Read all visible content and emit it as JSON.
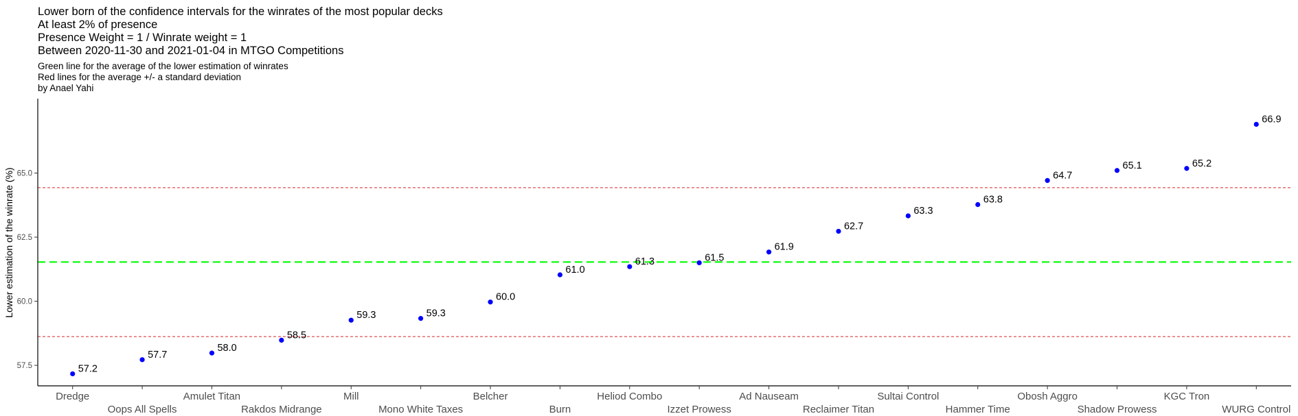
{
  "titles": [
    "Lower born of the confidence intervals for the winrates of the most popular decks",
    "At least 2% of presence",
    "Presence Weight = 1 / Winrate weight = 1",
    "Between 2020-11-30 and 2021-01-04 in MTGO Competitions"
  ],
  "subtitles": [
    "Green line for the average of the lower estimation of winrates",
    "Red lines for the average +/- a standard deviation",
    "by Anael Yahi"
  ],
  "chart_data": {
    "type": "scatter",
    "ylabel": "Lower estimation of the winrate (%)",
    "xlabel": "",
    "ylim": [
      56.7,
      67.9
    ],
    "yticks": [
      "57.5",
      "60.0",
      "62.5",
      "65.0"
    ],
    "ytick_values": [
      57.5,
      60.0,
      62.5,
      65.0
    ],
    "grid": false,
    "categories": [
      "Dredge",
      "Oops All Spells",
      "Amulet Titan",
      "Rakdos Midrange",
      "Mill",
      "Mono White Taxes",
      "Belcher",
      "Burn",
      "Heliod Combo",
      "Izzet Prowess",
      "Ad Nauseam",
      "Reclaimer Titan",
      "Sultai Control",
      "Hammer Time",
      "Obosh Aggro",
      "Shadow Prowess",
      "KGC Tron",
      "WURG Control"
    ],
    "values": [
      57.17,
      57.72,
      57.98,
      58.48,
      59.26,
      59.33,
      59.97,
      61.03,
      61.35,
      61.5,
      61.92,
      62.73,
      63.33,
      63.77,
      64.71,
      65.1,
      65.18,
      66.9
    ],
    "value_labels": [
      "57.2",
      "57.7",
      "58.0",
      "58.5",
      "59.3",
      "59.3",
      "60.0",
      "61.0",
      "61.3",
      "61.5",
      "61.9",
      "62.7",
      "63.3",
      "63.8",
      "64.7",
      "65.1",
      "65.2",
      "66.9"
    ],
    "reference_lines": [
      {
        "role": "average",
        "value": 61.53,
        "color": "#00ff00",
        "style": "dashed"
      },
      {
        "role": "average + sd",
        "value": 64.43,
        "color": "#e06060",
        "style": "dotted"
      },
      {
        "role": "average - sd",
        "value": 58.62,
        "color": "#e06060",
        "style": "dotted"
      }
    ],
    "point_color": "#0000ff"
  }
}
